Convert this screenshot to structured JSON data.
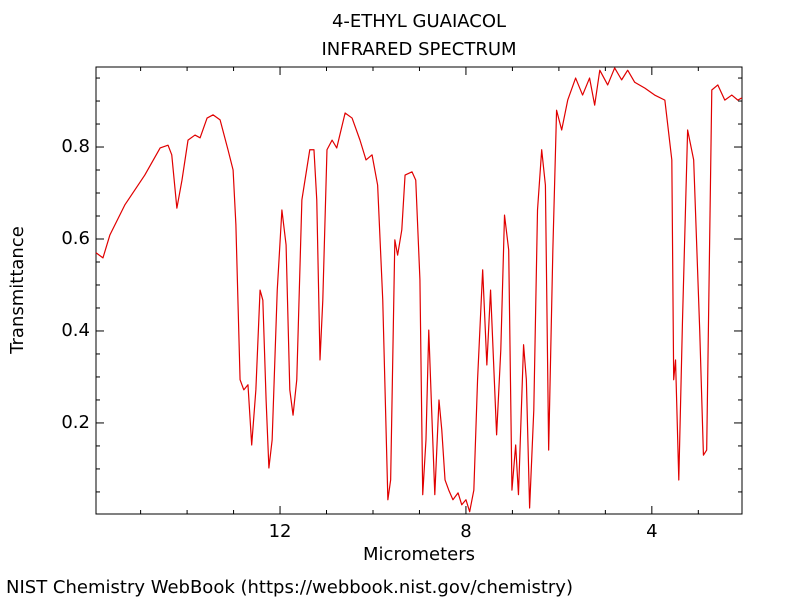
{
  "chart_data": {
    "type": "line",
    "title": "4-ETHYL GUAIACOL",
    "subtitle": "INFRARED SPECTRUM",
    "x_label": "Micrometers",
    "y_label": "Transmittance",
    "source": "NIST Chemistry WebBook (https://webbook.nist.gov/chemistry)",
    "xlim": [
      15.96,
      2.06
    ],
    "ylim": [
      0.002,
      0.974
    ],
    "xticks": [
      12,
      8,
      4
    ],
    "yticks": [
      0.2,
      0.4,
      0.6,
      0.8
    ],
    "xminorticks": [
      15,
      14,
      13,
      11,
      10,
      9,
      7,
      6,
      5,
      3
    ],
    "yminorticks": [
      0.05,
      0.1,
      0.15,
      0.25,
      0.3,
      0.35,
      0.45,
      0.5,
      0.55,
      0.65,
      0.7,
      0.75,
      0.85,
      0.9,
      0.95
    ],
    "grid": false,
    "series": [
      {
        "name": "4-ETHYL GUAIACOL",
        "color": "#e00000",
        "x": [
          15.96,
          15.81,
          15.66,
          15.34,
          14.91,
          14.58,
          14.41,
          14.33,
          14.22,
          14.11,
          13.98,
          13.83,
          13.72,
          13.57,
          13.44,
          13.29,
          13.12,
          13.01,
          12.95,
          12.86,
          12.78,
          12.69,
          12.61,
          12.52,
          12.43,
          12.37,
          12.3,
          12.24,
          12.17,
          12.06,
          11.96,
          11.87,
          11.79,
          11.72,
          11.64,
          11.53,
          11.36,
          11.27,
          11.21,
          11.14,
          11.08,
          10.99,
          10.88,
          10.78,
          10.6,
          10.45,
          10.28,
          10.15,
          10.02,
          9.9,
          9.79,
          9.68,
          9.62,
          9.53,
          9.47,
          9.38,
          9.31,
          9.16,
          9.08,
          8.99,
          8.93,
          8.86,
          8.8,
          8.73,
          8.67,
          8.58,
          8.52,
          8.45,
          8.37,
          8.28,
          8.17,
          8.09,
          8.0,
          7.92,
          7.83,
          7.75,
          7.64,
          7.55,
          7.47,
          7.34,
          7.25,
          7.17,
          7.08,
          7.01,
          6.93,
          6.87,
          6.76,
          6.7,
          6.63,
          6.54,
          6.46,
          6.37,
          6.29,
          6.22,
          6.13,
          6.05,
          5.94,
          5.81,
          5.64,
          5.49,
          5.34,
          5.23,
          5.12,
          4.95,
          4.8,
          4.65,
          4.52,
          4.37,
          4.15,
          3.94,
          3.72,
          3.57,
          3.53,
          3.49,
          3.42,
          3.34,
          3.23,
          3.1,
          2.97,
          2.89,
          2.82,
          2.71,
          2.58,
          2.43,
          2.28,
          2.15,
          2.06
        ],
        "values": [
          0.57,
          0.559,
          0.609,
          0.674,
          0.739,
          0.798,
          0.804,
          0.783,
          0.667,
          0.728,
          0.815,
          0.826,
          0.82,
          0.863,
          0.87,
          0.859,
          0.794,
          0.75,
          0.631,
          0.294,
          0.272,
          0.283,
          0.152,
          0.272,
          0.489,
          0.467,
          0.25,
          0.102,
          0.163,
          0.489,
          0.663,
          0.587,
          0.272,
          0.217,
          0.294,
          0.685,
          0.794,
          0.794,
          0.685,
          0.337,
          0.467,
          0.794,
          0.815,
          0.798,
          0.874,
          0.863,
          0.815,
          0.772,
          0.783,
          0.717,
          0.467,
          0.033,
          0.076,
          0.598,
          0.565,
          0.62,
          0.739,
          0.746,
          0.728,
          0.511,
          0.044,
          0.163,
          0.402,
          0.207,
          0.044,
          0.25,
          0.185,
          0.076,
          0.054,
          0.033,
          0.048,
          0.022,
          0.033,
          0.007,
          0.054,
          0.294,
          0.533,
          0.326,
          0.489,
          0.174,
          0.359,
          0.652,
          0.576,
          0.054,
          0.152,
          0.044,
          0.37,
          0.294,
          0.015,
          0.228,
          0.663,
          0.794,
          0.717,
          0.141,
          0.576,
          0.88,
          0.837,
          0.902,
          0.95,
          0.913,
          0.95,
          0.891,
          0.967,
          0.935,
          0.972,
          0.946,
          0.967,
          0.941,
          0.928,
          0.913,
          0.902,
          0.772,
          0.294,
          0.337,
          0.076,
          0.424,
          0.837,
          0.772,
          0.402,
          0.13,
          0.141,
          0.924,
          0.935,
          0.902,
          0.913,
          0.902,
          0.907
        ]
      }
    ]
  }
}
